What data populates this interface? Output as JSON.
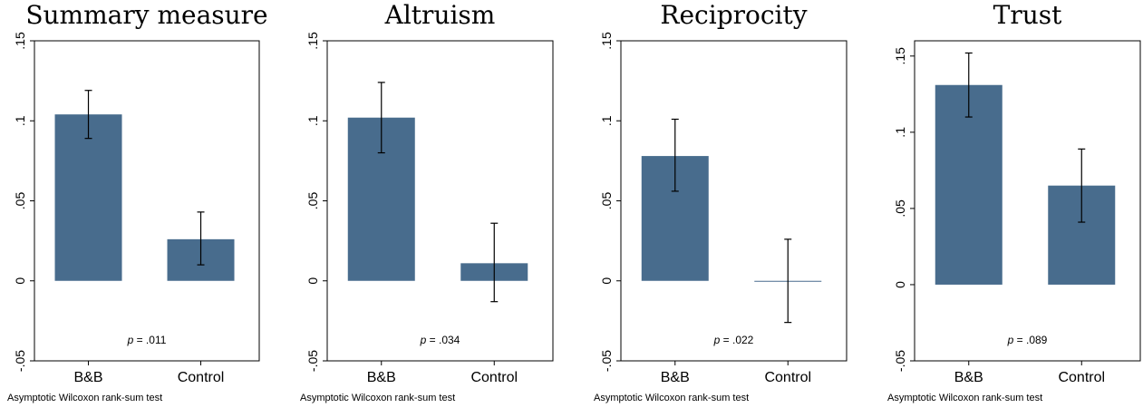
{
  "bar_color": "#486c8d",
  "chart_data": [
    {
      "type": "bar",
      "title": "Summary measure",
      "categories": [
        "B&B",
        "Control"
      ],
      "values": [
        0.104,
        0.026
      ],
      "ci_low": [
        0.089,
        0.01
      ],
      "ci_high": [
        0.119,
        0.043
      ],
      "ylim": [
        -0.05,
        0.15
      ],
      "yticks": [
        -0.05,
        0,
        0.05,
        0.1,
        0.15
      ],
      "ytick_labels": [
        "-.05",
        "0",
        ".05",
        ".1",
        ".15"
      ],
      "p_prefix": "p",
      "p_text": "= .011",
      "note": "Asymptotic Wilcoxon rank-sum test"
    },
    {
      "type": "bar",
      "title": "Altruism",
      "categories": [
        "B&B",
        "Control"
      ],
      "values": [
        0.102,
        0.011
      ],
      "ci_low": [
        0.08,
        -0.013
      ],
      "ci_high": [
        0.124,
        0.036
      ],
      "ylim": [
        -0.05,
        0.15
      ],
      "yticks": [
        -0.05,
        0,
        0.05,
        0.1,
        0.15
      ],
      "ytick_labels": [
        "-.05",
        "0",
        ".05",
        ".1",
        ".15"
      ],
      "p_prefix": "p",
      "p_text": "= .034",
      "note": "Asymptotic Wilcoxon rank-sum test"
    },
    {
      "type": "bar",
      "title": "Reciprocity",
      "categories": [
        "B&B",
        "Control"
      ],
      "values": [
        0.078,
        0.0
      ],
      "ci_low": [
        0.056,
        -0.026
      ],
      "ci_high": [
        0.101,
        0.026
      ],
      "ylim": [
        -0.05,
        0.15
      ],
      "yticks": [
        -0.05,
        0,
        0.05,
        0.1,
        0.15
      ],
      "ytick_labels": [
        "-.05",
        "0",
        ".05",
        ".1",
        ".15"
      ],
      "p_prefix": "p",
      "p_text": "= .022",
      "note": "Asymptotic Wilcoxon rank-sum test"
    },
    {
      "type": "bar",
      "title": "Trust",
      "categories": [
        "B&B",
        "Control"
      ],
      "values": [
        0.131,
        0.065
      ],
      "ci_low": [
        0.11,
        0.041
      ],
      "ci_high": [
        0.152,
        0.089
      ],
      "ylim": [
        -0.05,
        0.16
      ],
      "yticks": [
        -0.05,
        0,
        0.05,
        0.1,
        0.15
      ],
      "ytick_labels": [
        "-.05",
        "0",
        ".05",
        ".1",
        ".15"
      ],
      "p_prefix": "p",
      "p_text": "= .089",
      "note": "Asymptotic Wilcoxon rank-sum test"
    }
  ]
}
